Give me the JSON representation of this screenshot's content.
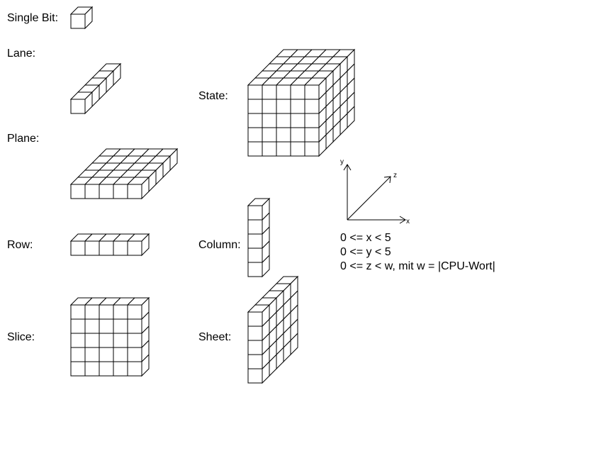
{
  "labels": {
    "single_bit": "Single Bit:",
    "lane": "Lane:",
    "state": "State:",
    "plane": "Plane:",
    "row": "Row:",
    "column": "Column:",
    "slice": "Slice:",
    "sheet": "Sheet:"
  },
  "axes": {
    "x": "x",
    "y": "y",
    "z": "z"
  },
  "constraints": [
    "0 <= x < 5",
    "0 <= y < 5",
    "0 <= z < w, mit w = |CPU-Wort|"
  ],
  "structures": {
    "single_bit": {
      "nx": 1,
      "ny": 1,
      "nz": 1
    },
    "lane": {
      "nx": 1,
      "ny": 1,
      "nz": 5
    },
    "state": {
      "nx": 5,
      "ny": 5,
      "nz": 5
    },
    "plane": {
      "nx": 5,
      "ny": 1,
      "nz": 5
    },
    "row": {
      "nx": 5,
      "ny": 1,
      "nz": 1
    },
    "column": {
      "nx": 1,
      "ny": 5,
      "nz": 1
    },
    "slice": {
      "nx": 5,
      "ny": 5,
      "nz": 1
    },
    "sheet": {
      "nx": 1,
      "ny": 5,
      "nz": 5
    }
  },
  "colors": {
    "stroke": "#000000",
    "fill": "#ffffff"
  }
}
